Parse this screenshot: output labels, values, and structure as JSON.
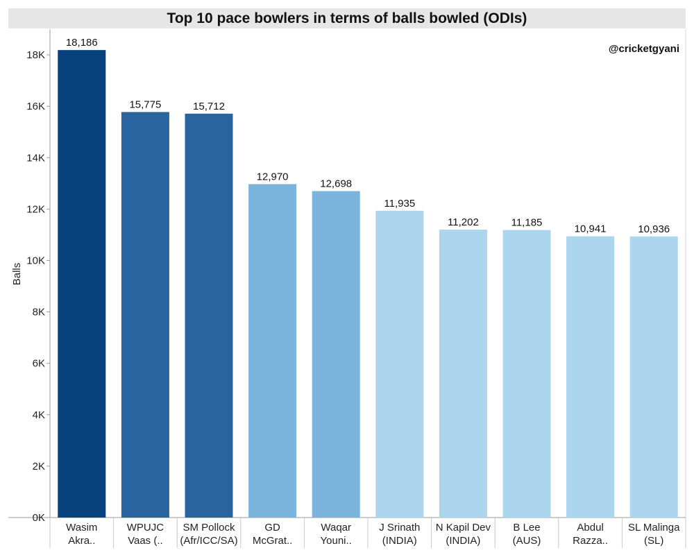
{
  "chart_data": {
    "type": "bar",
    "title": "Top 10 pace bowlers in terms of balls bowled (ODIs)",
    "ylabel": "Balls",
    "xlabel": "",
    "watermark": "@cricketgyani",
    "ylim": [
      0,
      19000
    ],
    "yticks": [
      0,
      2000,
      4000,
      6000,
      8000,
      10000,
      12000,
      14000,
      16000,
      18000
    ],
    "ytick_labels": [
      "0K",
      "2K",
      "4K",
      "6K",
      "8K",
      "10K",
      "12K",
      "14K",
      "16K",
      "18K"
    ],
    "categories": [
      [
        "Wasim",
        "Akra.."
      ],
      [
        "WPUJC",
        "Vaas (.."
      ],
      [
        "SM Pollock",
        "(Afr/ICC/SA)"
      ],
      [
        "GD",
        "McGrat.."
      ],
      [
        "Waqar",
        "Youni.."
      ],
      [
        "J Srinath",
        "(INDIA)"
      ],
      [
        "N Kapil Dev",
        "(INDIA)"
      ],
      [
        "B Lee",
        "(AUS)"
      ],
      [
        "Abdul",
        "Razza.."
      ],
      [
        "SL Malinga",
        "(SL)"
      ]
    ],
    "values": [
      18186,
      15775,
      15712,
      12970,
      12698,
      11935,
      11202,
      11185,
      10941,
      10936
    ],
    "value_labels": [
      "18,186",
      "15,775",
      "15,712",
      "12,970",
      "12,698",
      "11,935",
      "11,202",
      "11,185",
      "10,941",
      "10,936"
    ],
    "colors": [
      "#08427e",
      "#2a64a0",
      "#2a64a0",
      "#7ab3dc",
      "#7ab3dc",
      "#acd5ee",
      "#acd5ee",
      "#acd5ee",
      "#acd5ee",
      "#acd5ee"
    ],
    "grid": false,
    "legend": "none"
  }
}
